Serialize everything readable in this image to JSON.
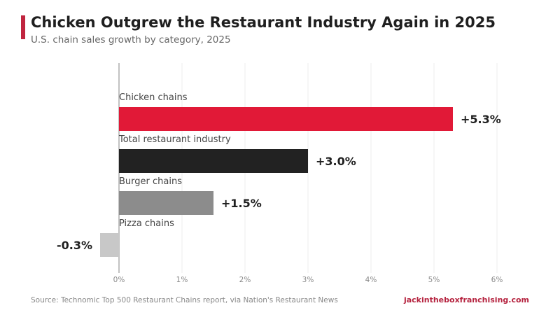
{
  "header": {
    "title": "Chicken Outgrew the Restaurant Industry Again in 2025",
    "subtitle": "U.S. chain sales growth by category, 2025",
    "accent_color": "#c0253f"
  },
  "footer": {
    "source": "Source: Technomic Top 500 Restaurant Chains report, via Nation's Restaurant News",
    "site": "jackintheboxfranchising.com",
    "site_color": "#b5233f"
  },
  "chart_data": {
    "type": "bar",
    "orientation": "horizontal",
    "categories": [
      "Chicken chains",
      "Total restaurant industry",
      "Burger chains",
      "Pizza chains"
    ],
    "values": [
      5.3,
      3.0,
      1.5,
      -0.3
    ],
    "value_labels": [
      "+5.3%",
      "+3.0%",
      "+1.5%",
      "-0.3%"
    ],
    "colors": [
      "#e11937",
      "#222222",
      "#8c8c8c",
      "#c8c8c8"
    ],
    "xlim": [
      -0.3,
      6
    ],
    "xticks": [
      0,
      1,
      2,
      3,
      4,
      5,
      6
    ],
    "xtick_labels": [
      "0%",
      "1%",
      "2%",
      "3%",
      "4%",
      "5%",
      "6%"
    ],
    "grid": "vertical",
    "legend": "none"
  }
}
